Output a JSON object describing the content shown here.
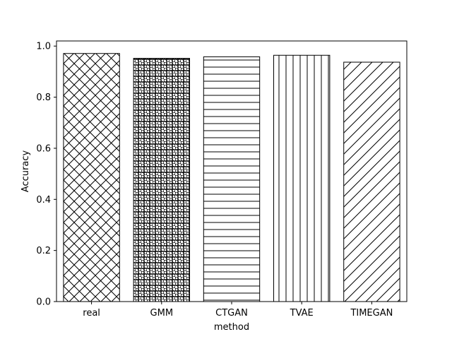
{
  "chart_data": {
    "type": "bar",
    "title": "",
    "xlabel": "method",
    "ylabel": "Accuracy",
    "categories": [
      "real",
      "GMM",
      "CTGAN",
      "TVAE",
      "TIMEGAN"
    ],
    "values": [
      0.971,
      0.952,
      0.958,
      0.964,
      0.937
    ],
    "hatches": [
      "crosshatch",
      "dots",
      "horizontal",
      "vertical",
      "diagonal"
    ],
    "ylim": [
      0,
      1.02
    ],
    "yticks": [
      "0.0",
      "0.2",
      "0.4",
      "0.6",
      "0.8",
      "1.0"
    ],
    "grid": false,
    "legend": "none",
    "bar_fill": "#ffffff",
    "bar_edge": "#000000"
  }
}
